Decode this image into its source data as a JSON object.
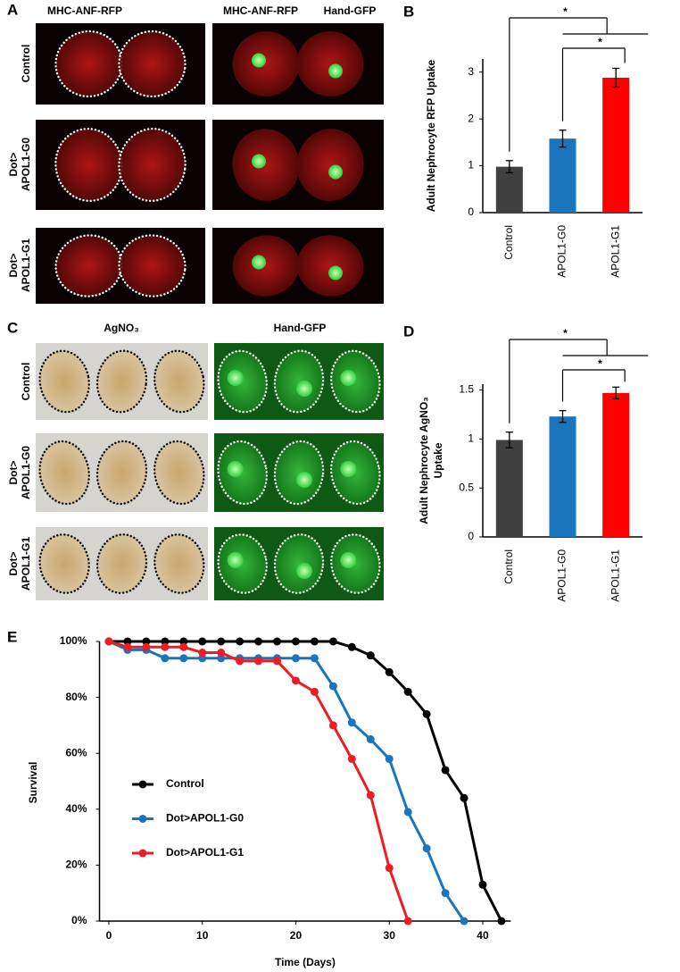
{
  "figure": {
    "panel_labels": [
      "A",
      "B",
      "C",
      "D",
      "E"
    ],
    "a": {
      "columns": [
        "MHC-ANF-RFP",
        "MHC-ANF-RFP",
        "Hand-GFP"
      ],
      "rows": [
        [
          "Control"
        ],
        [
          "Dot>",
          "APOL1-G0"
        ],
        [
          "Dot>",
          "APOL1-G1"
        ]
      ]
    },
    "c": {
      "columns": [
        "AgNO₃",
        "Hand-GFP"
      ],
      "rows": [
        [
          "Control"
        ],
        [
          "Dot>",
          "APOL1-G0"
        ],
        [
          "Dot>",
          "APOL1-G1"
        ]
      ]
    }
  },
  "chart_data": [
    {
      "type": "bar",
      "ylabel": [
        "Adult Nephrocyte RFP Uptake"
      ],
      "categories": [
        "Control",
        "APOL1-G0",
        "APOL1-G1"
      ],
      "values": [
        0.98,
        1.58,
        2.88
      ],
      "errors": [
        0.13,
        0.18,
        0.2
      ],
      "colors": [
        "#404040",
        "#1b75bc",
        "#ff0000"
      ],
      "ylim": [
        0,
        3.28
      ],
      "yticks": [
        0,
        1,
        2,
        3
      ],
      "annotations": [
        "*",
        "*"
      ]
    },
    {
      "type": "bar",
      "ylabel": [
        "Adult Nephrocyte AgNO₃",
        "Uptake"
      ],
      "categories": [
        "Control",
        "APOL1-G0",
        "APOL1-G1"
      ],
      "values": [
        0.99,
        1.23,
        1.47
      ],
      "errors": [
        0.08,
        0.06,
        0.06
      ],
      "colors": [
        "#404040",
        "#1b75bc",
        "#ff0000"
      ],
      "ylim": [
        0,
        1.56
      ],
      "yticks": [
        0,
        0.5,
        1,
        1.5
      ],
      "annotations": [
        "*",
        "*"
      ]
    },
    {
      "type": "line",
      "xlabel": "Time (Days)",
      "ylabel": "Survival",
      "xlim": [
        -1,
        43
      ],
      "xticks": [
        0,
        10,
        20,
        30,
        40
      ],
      "ylim": [
        0,
        100
      ],
      "yticks": [
        {
          "value": 0,
          "label": "0%"
        },
        {
          "value": 20,
          "label": "20%"
        },
        {
          "value": 40,
          "label": "40%"
        },
        {
          "value": 60,
          "label": "60%"
        },
        {
          "value": 80,
          "label": "80%"
        },
        {
          "value": 100,
          "label": "100%"
        }
      ],
      "series": [
        {
          "name": "Control",
          "color": "#000000",
          "x": [
            0,
            2,
            4,
            6,
            8,
            10,
            12,
            14,
            16,
            18,
            20,
            22,
            24,
            26,
            28,
            30,
            32,
            34,
            36,
            38,
            40,
            42
          ],
          "values": [
            100,
            100,
            100,
            100,
            100,
            100,
            100,
            100,
            100,
            100,
            100,
            100,
            100,
            98,
            95,
            89,
            82,
            74,
            54,
            44,
            13,
            0
          ]
        },
        {
          "name": "Dot>APOL1-G0",
          "color": "#1b75bc",
          "x": [
            0,
            2,
            4,
            6,
            8,
            10,
            12,
            14,
            16,
            18,
            20,
            22,
            24,
            26,
            28,
            30,
            32,
            34,
            36,
            38
          ],
          "values": [
            100,
            97,
            97,
            94,
            94,
            94,
            94,
            94,
            94,
            94,
            94,
            94,
            84,
            71,
            65,
            58,
            39,
            26,
            10,
            0
          ]
        },
        {
          "name": "Dot>APOL1-G1",
          "color": "#ee1c24",
          "x": [
            0,
            2,
            4,
            6,
            8,
            10,
            12,
            14,
            16,
            18,
            20,
            22,
            24,
            26,
            28,
            30,
            32
          ],
          "values": [
            100,
            98,
            98,
            98,
            98,
            96,
            96,
            93,
            93,
            93,
            86,
            82,
            70,
            58,
            45,
            19,
            0
          ]
        }
      ]
    }
  ]
}
